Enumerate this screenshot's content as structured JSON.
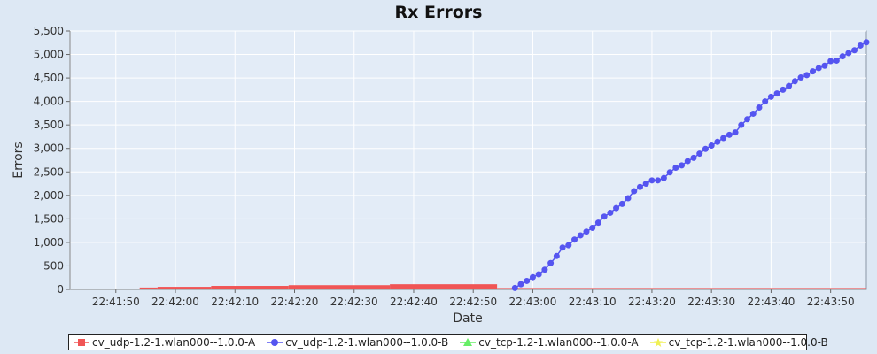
{
  "chart_data": {
    "type": "line",
    "title": "Rx Errors",
    "xlabel": "Date",
    "ylabel": "Errors",
    "ylim": [
      0,
      5500
    ],
    "y_ticks": [
      "0",
      "500",
      "1,000",
      "1,500",
      "2,000",
      "2,500",
      "3,000",
      "3,500",
      "4,000",
      "4,500",
      "5,000",
      "5,500"
    ],
    "x_ticks": [
      "22:41:50",
      "22:42:00",
      "22:42:10",
      "22:42:20",
      "22:42:30",
      "22:42:40",
      "22:42:50",
      "22:43:00",
      "22:43:10",
      "22:43:20",
      "22:43:30",
      "22:43:40",
      "22:43:50"
    ],
    "grid": true,
    "legend_position": "bottom",
    "series": [
      {
        "name": "cv_udp-1.2-1.wlan000--1.0.0-A",
        "color": "#f05555",
        "marker": "square",
        "style": "step-bars",
        "steps": [
          {
            "from": "22:41:54",
            "to": "22:41:57",
            "value": 40
          },
          {
            "from": "22:41:57",
            "to": "22:42:06",
            "value": 55
          },
          {
            "from": "22:42:06",
            "to": "22:42:19",
            "value": 75
          },
          {
            "from": "22:42:19",
            "to": "22:42:36",
            "value": 90
          },
          {
            "from": "22:42:36",
            "to": "22:42:54",
            "value": 110
          },
          {
            "from": "22:42:54",
            "to": "22:43:56",
            "value": 30
          }
        ]
      },
      {
        "name": "cv_udp-1.2-1.wlan000--1.0.0-B",
        "color": "#5555f0",
        "marker": "circle",
        "x": [
          "22:42:57",
          "22:42:58",
          "22:42:59",
          "22:43:00",
          "22:43:01",
          "22:43:02",
          "22:43:03",
          "22:43:04",
          "22:43:05",
          "22:43:06",
          "22:43:07",
          "22:43:08",
          "22:43:09",
          "22:43:10",
          "22:43:11",
          "22:43:12",
          "22:43:13",
          "22:43:14",
          "22:43:15",
          "22:43:16",
          "22:43:17",
          "22:43:18",
          "22:43:19",
          "22:43:20",
          "22:43:21",
          "22:43:22",
          "22:43:23",
          "22:43:24",
          "22:43:25",
          "22:43:26",
          "22:43:27",
          "22:43:28",
          "22:43:29",
          "22:43:30",
          "22:43:31",
          "22:43:32",
          "22:43:33",
          "22:43:34",
          "22:43:35",
          "22:43:36",
          "22:43:37",
          "22:43:38",
          "22:43:39",
          "22:43:40",
          "22:43:41",
          "22:43:42",
          "22:43:43",
          "22:43:44",
          "22:43:45",
          "22:43:46",
          "22:43:47",
          "22:43:48",
          "22:43:49",
          "22:43:50",
          "22:43:51",
          "22:43:52",
          "22:43:53",
          "22:43:54",
          "22:43:55",
          "22:43:56"
        ],
        "values": [
          30,
          110,
          180,
          260,
          320,
          420,
          560,
          710,
          890,
          940,
          1060,
          1150,
          1230,
          1310,
          1420,
          1550,
          1630,
          1730,
          1820,
          1940,
          2090,
          2180,
          2250,
          2320,
          2320,
          2370,
          2490,
          2590,
          2640,
          2730,
          2800,
          2890,
          2990,
          3060,
          3140,
          3220,
          3290,
          3340,
          3500,
          3620,
          3740,
          3870,
          4000,
          4100,
          4170,
          4250,
          4330,
          4430,
          4510,
          4560,
          4640,
          4710,
          4760,
          4860,
          4870,
          4960,
          5030,
          5090,
          5190,
          5260
        ]
      },
      {
        "name": "cv_tcp-1.2-1.wlan000--1.0.0-A",
        "color": "#66ee66",
        "marker": "triangle",
        "x": [],
        "values": []
      },
      {
        "name": "cv_tcp-1.2-1.wlan000--1.0.0-B",
        "color": "#f0f055",
        "marker": "star",
        "x": [],
        "values": []
      }
    ]
  }
}
